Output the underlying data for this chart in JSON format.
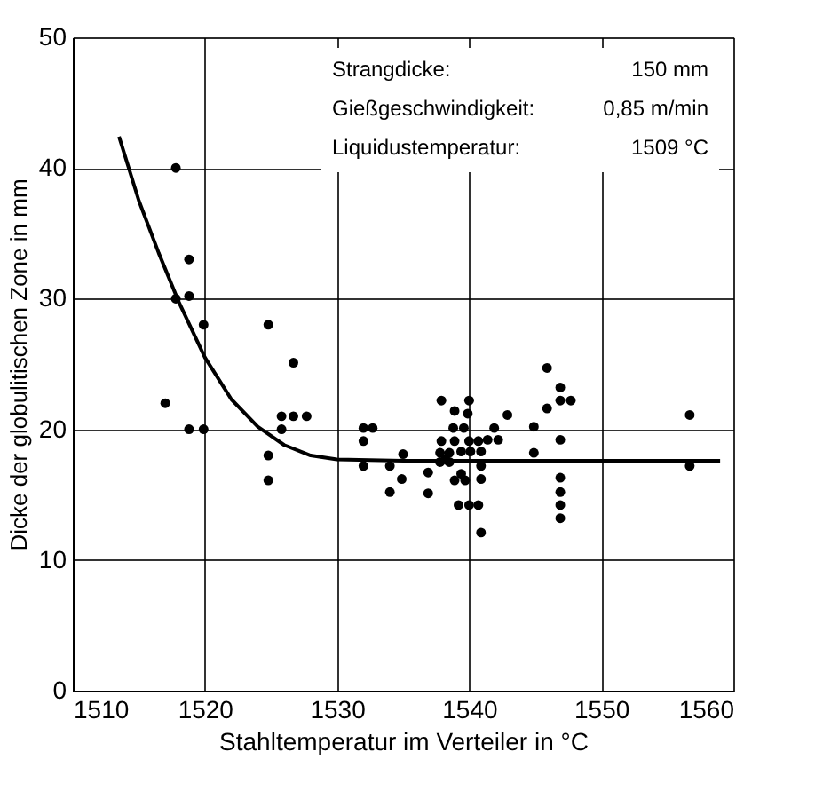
{
  "chart_data": {
    "type": "scatter",
    "xlabel": "Stahltemperatur im Verteiler in °C",
    "ylabel": "Dicke der globulitischen Zone in mm",
    "xlim": [
      1510,
      1560
    ],
    "xticks": [
      1510,
      1520,
      1530,
      1540,
      1550,
      1560
    ],
    "ylim": [
      0,
      50
    ],
    "yticks": [
      0,
      10,
      20,
      30,
      40,
      50
    ],
    "grid": true,
    "marker": "circle",
    "annotations": [
      "Strangdicke:",
      "150 mm",
      "Gießgeschwindigkeit:",
      "0,85 m/min",
      "Liquidustemperatur:",
      "1509 °C"
    ],
    "series": [
      {
        "color": "#000000",
        "x": [
          1517.8,
          1518.8,
          1517.8,
          1518.8,
          1519.9,
          1524.8,
          1526.7,
          1517.0,
          1525.8,
          1526.7,
          1527.7,
          1518.8,
          1519.9,
          1525.8,
          1524.8,
          1524.8,
          1532.0,
          1532.7,
          1532.0,
          1545.9,
          1546.9,
          1546.9,
          1547.7,
          1537.9,
          1540.0,
          1538.9,
          1539.9,
          1542.9,
          1545.9,
          1556.7,
          1538.8,
          1539.6,
          1541.9,
          1544.9,
          1537.9,
          1538.9,
          1540.0,
          1540.7,
          1541.4,
          1542.2,
          1546.9,
          1535.0,
          1537.8,
          1538.5,
          1539.4,
          1540.1,
          1540.9,
          1544.9,
          1537.8,
          1538.5,
          1538.2,
          1532.0,
          1534.0,
          1540.9,
          1556.7,
          1536.9,
          1534.9,
          1538.9,
          1539.7,
          1539.4,
          1540.9,
          1546.9,
          1534.0,
          1536.9,
          1546.9,
          1539.2,
          1540.0,
          1540.7,
          1546.9,
          1546.9,
          1540.9
        ],
        "values": [
          40,
          33,
          30,
          30.2,
          28,
          28,
          25.1,
          22,
          21,
          21,
          21,
          20,
          20,
          20,
          18,
          16.1,
          20.1,
          20.1,
          19.1,
          24.7,
          23.2,
          22.2,
          22.2,
          22.2,
          22.2,
          21.4,
          21.2,
          21.1,
          21.6,
          21.1,
          20.1,
          20.1,
          20.1,
          20.2,
          19.1,
          19.1,
          19.1,
          19.1,
          19.2,
          19.2,
          19.2,
          18.1,
          18.2,
          18.2,
          18.3,
          18.3,
          18.3,
          18.2,
          17.5,
          17.5,
          17.7,
          17.2,
          17.2,
          17.2,
          17.2,
          16.7,
          16.2,
          16.1,
          16.1,
          16.6,
          16.2,
          16.3,
          15.2,
          15.1,
          15.2,
          14.2,
          14.2,
          14.2,
          14.2,
          13.2,
          12.1
        ]
      },
      {
        "type": "line",
        "color": "#000000",
        "line_style": "solid",
        "marker": "none",
        "x": [
          1513.5,
          1515,
          1516.5,
          1518,
          1520,
          1522,
          1524,
          1526,
          1528,
          1530,
          1535,
          1559
        ],
        "values": [
          42.4,
          37.5,
          33.5,
          29.8,
          25.5,
          22.3,
          20.2,
          18.8,
          18.0,
          17.7,
          17.6,
          17.6
        ]
      }
    ]
  }
}
